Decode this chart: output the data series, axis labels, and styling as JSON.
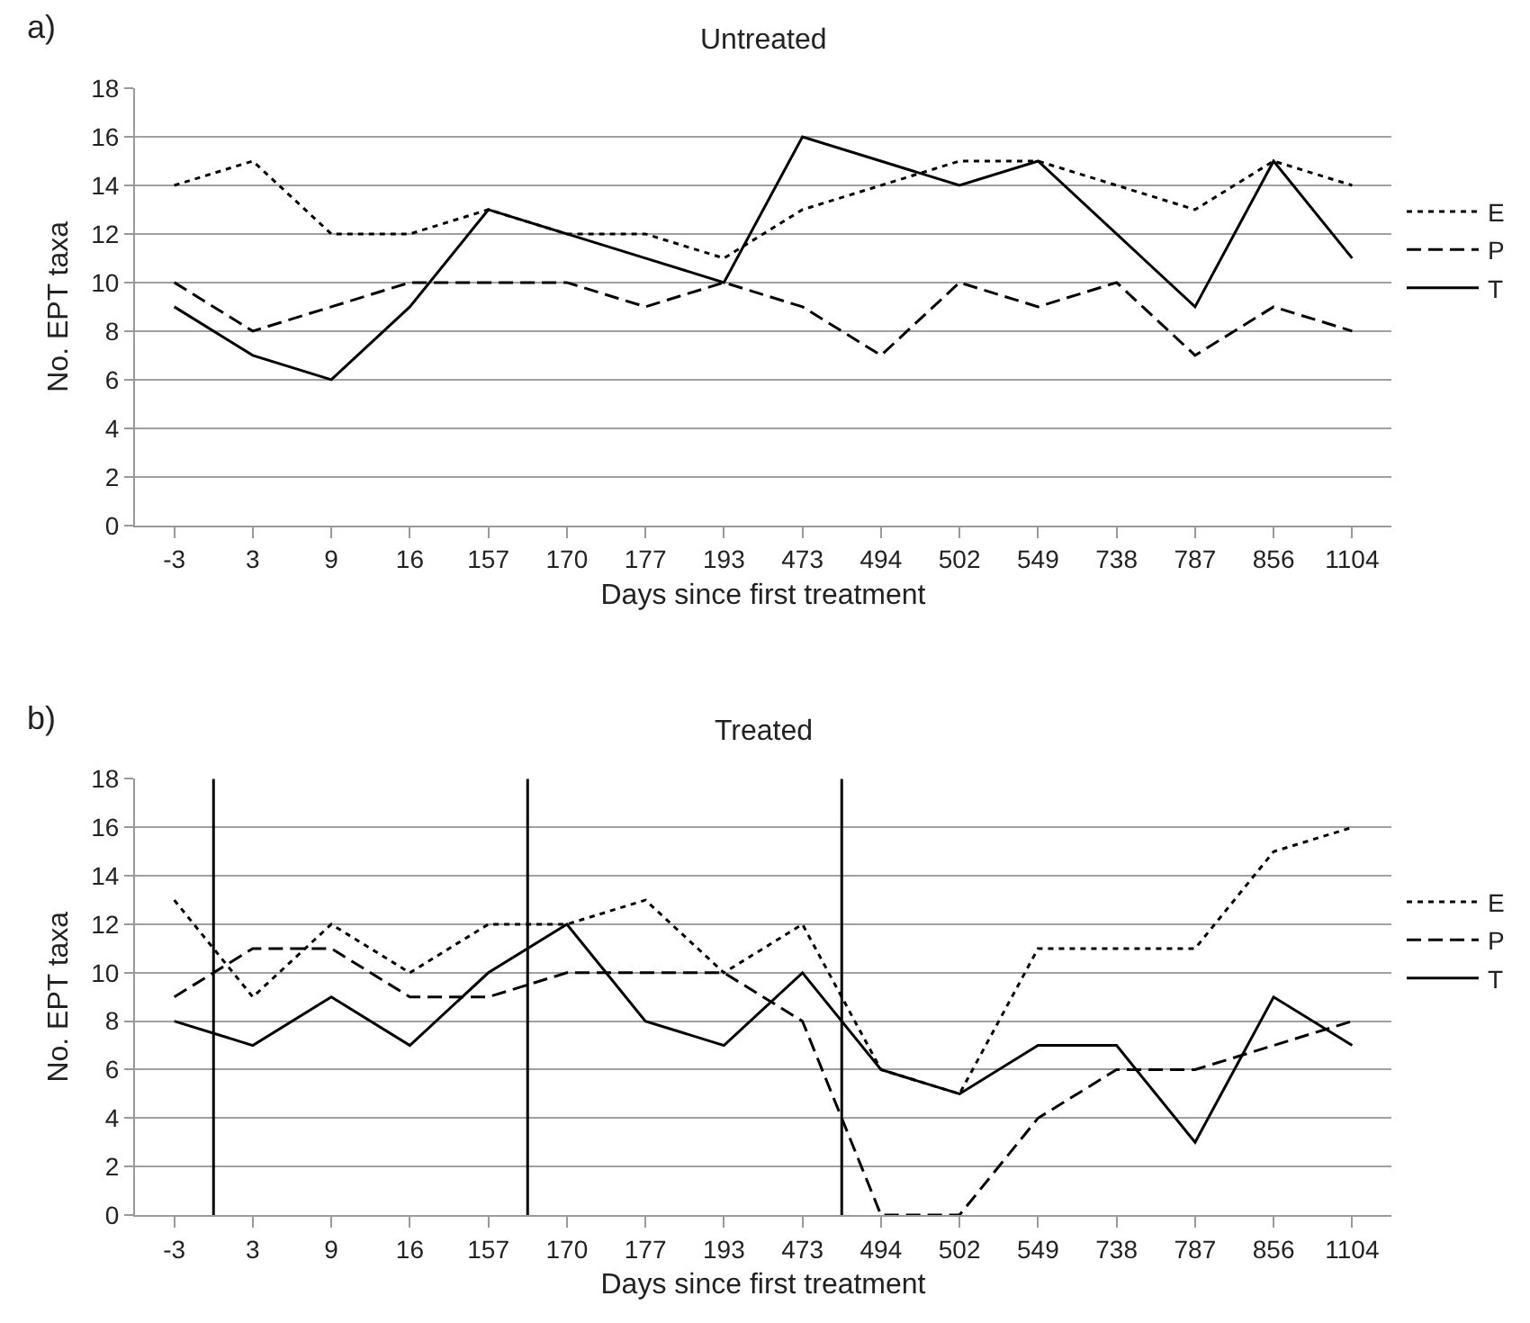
{
  "chart_data": [
    {
      "type": "line",
      "title": "Untreated",
      "xlabel": "Days since first treatment",
      "ylabel": "No. EPT taxa",
      "annotations": [
        "a)"
      ],
      "categories": [
        "-3",
        "3",
        "9",
        "16",
        "157",
        "170",
        "177",
        "193",
        "473",
        "494",
        "502",
        "549",
        "738",
        "787",
        "856",
        "1104"
      ],
      "series": [
        {
          "name": "E",
          "color": "#000000",
          "line_style": "dotted",
          "values": [
            14,
            15,
            12,
            12,
            13,
            12,
            12,
            11,
            13,
            14,
            15,
            15,
            14,
            13,
            15,
            14
          ]
        },
        {
          "name": "P",
          "color": "#000000",
          "line_style": "dashed",
          "values": [
            10,
            8,
            9,
            10,
            10,
            10,
            9,
            10,
            9,
            7,
            10,
            9,
            10,
            7,
            9,
            8
          ]
        },
        {
          "name": "T",
          "color": "#000000",
          "line_style": "solid",
          "values": [
            9,
            7,
            6,
            9,
            13,
            12,
            11,
            10,
            16,
            15,
            14,
            15,
            12,
            9,
            15,
            11
          ]
        }
      ],
      "ylim": [
        0,
        18
      ],
      "yticks": [
        0,
        2,
        4,
        6,
        8,
        10,
        12,
        14,
        16,
        18
      ],
      "grid": "y",
      "legend": "right",
      "marker": "none"
    },
    {
      "type": "line",
      "title": "Treated",
      "xlabel": "Days since first treatment",
      "ylabel": "No. EPT taxa",
      "annotations": [
        "b)"
      ],
      "categories": [
        "-3",
        "3",
        "9",
        "16",
        "157",
        "170",
        "177",
        "193",
        "473",
        "494",
        "502",
        "549",
        "738",
        "787",
        "856",
        "1104"
      ],
      "series": [
        {
          "name": "E",
          "color": "#000000",
          "line_style": "dotted",
          "values": [
            13,
            9,
            12,
            10,
            12,
            12,
            13,
            10,
            12,
            6,
            5,
            11,
            11,
            11,
            15,
            16
          ]
        },
        {
          "name": "P",
          "color": "#000000",
          "line_style": "dashed",
          "values": [
            9,
            11,
            11,
            9,
            9,
            10,
            10,
            10,
            8,
            0,
            0,
            4,
            6,
            6,
            7,
            8
          ]
        },
        {
          "name": "T",
          "color": "#000000",
          "line_style": "solid",
          "values": [
            8,
            7,
            9,
            7,
            10,
            12,
            8,
            7,
            10,
            6,
            5,
            7,
            7,
            3,
            9,
            7
          ]
        }
      ],
      "ylim": [
        0,
        18
      ],
      "yticks": [
        0,
        2,
        4,
        6,
        8,
        10,
        12,
        14,
        16,
        18
      ],
      "grid": "y",
      "legend": "right",
      "marker": "none"
    }
  ]
}
